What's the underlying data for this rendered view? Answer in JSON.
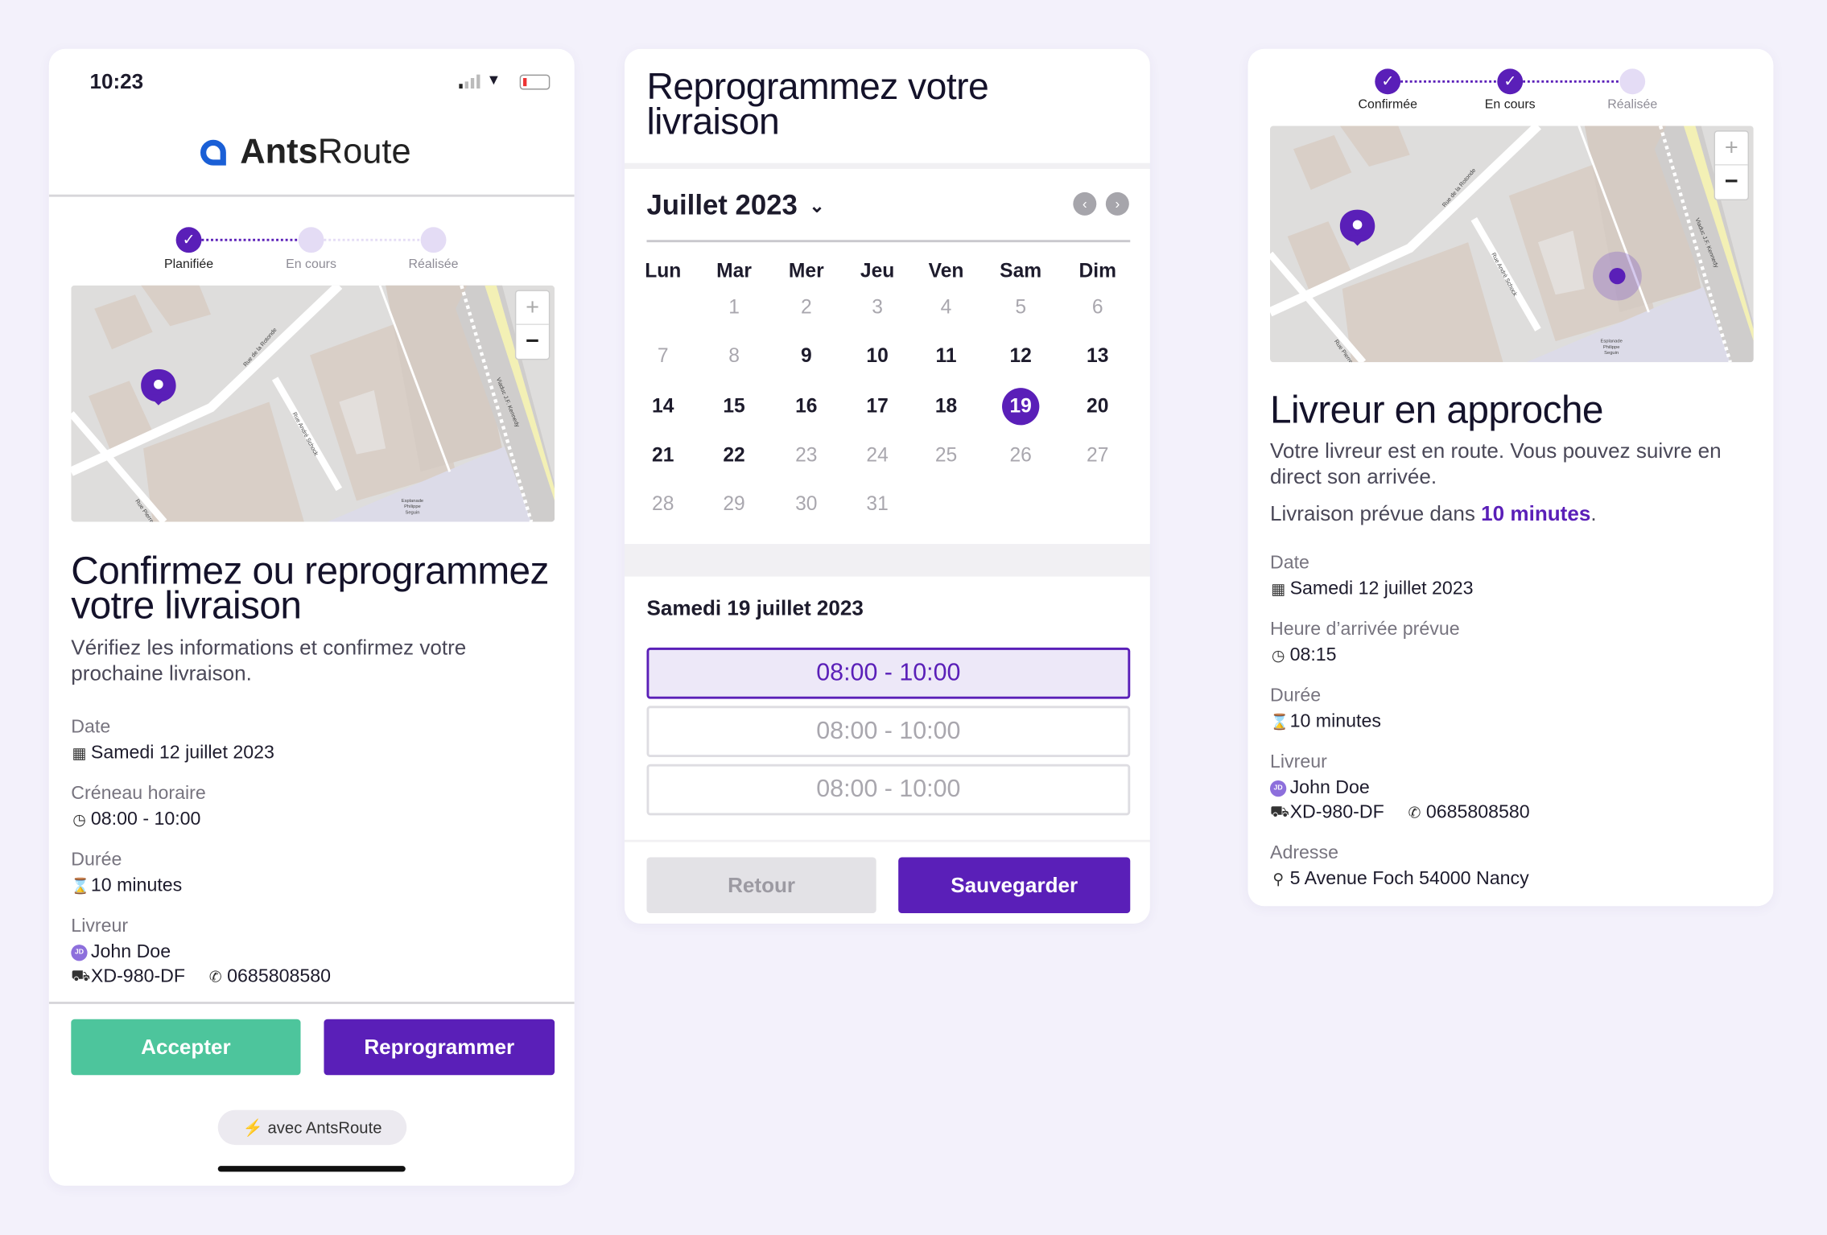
{
  "colors": {
    "primary": "#5a1fb8",
    "accept": "#4dc59c",
    "background": "#f3f1fb",
    "step_inactive": "#e4dcf5"
  },
  "map": {
    "labels": [
      "Rue de la Rotonde",
      "Rue André Schock",
      "Viaduc J.F. Kennedy",
      "Rue Pierre",
      "Esplanade",
      "Philippe",
      "Seguin"
    ],
    "zoom_in": "+",
    "zoom_out": "−"
  },
  "screen1": {
    "status": {
      "time": "10:23",
      "icons": [
        "signal-icon",
        "wifi-icon",
        "battery-low-icon"
      ]
    },
    "logo": {
      "bold": "Ants",
      "light": "Route"
    },
    "steps": [
      {
        "label": "Planifiée",
        "done": true
      },
      {
        "label": "En cours",
        "done": false
      },
      {
        "label": "Réalisée",
        "done": false
      }
    ],
    "title": "Confirmez ou reprogrammez votre livraison",
    "subtitle": "Vérifiez les informations et confirmez votre prochaine livraison.",
    "fields": {
      "date_label": "Date",
      "date_value": "Samedi 12 juillet 2023",
      "slot_label": "Créneau horaire",
      "slot_value": "08:00 - 10:00",
      "duration_label": "Durée",
      "duration_value": "10 minutes",
      "driver_label": "Livreur",
      "driver_initials": "JD",
      "driver_name": "John Doe",
      "plate": "XD-980-DF",
      "phone": "0685808580"
    },
    "accept": "Accepter",
    "reschedule": "Reprogrammer",
    "powered": "avec AntsRoute"
  },
  "screen2": {
    "title": "Reprogrammez votre livraison",
    "month": "Juillet 2023",
    "weekdays": [
      "Lun",
      "Mar",
      "Mer",
      "Jeu",
      "Ven",
      "Sam",
      "Dim"
    ],
    "weeks": [
      [
        null,
        {
          "d": "1",
          "s": "dim"
        },
        {
          "d": "2",
          "s": "dim"
        },
        {
          "d": "3",
          "s": "dim"
        },
        {
          "d": "4",
          "s": "dim"
        },
        {
          "d": "5",
          "s": "dim"
        },
        {
          "d": "6",
          "s": "dim"
        }
      ],
      [
        {
          "d": "7",
          "s": "dim"
        },
        {
          "d": "8",
          "s": "dim"
        },
        {
          "d": "9",
          "s": "on"
        },
        {
          "d": "10",
          "s": "on"
        },
        {
          "d": "11",
          "s": "on"
        },
        {
          "d": "12",
          "s": "on"
        },
        {
          "d": "13",
          "s": "on"
        }
      ],
      [
        {
          "d": "14",
          "s": "on"
        },
        {
          "d": "15",
          "s": "on"
        },
        {
          "d": "16",
          "s": "on"
        },
        {
          "d": "17",
          "s": "on"
        },
        {
          "d": "18",
          "s": "on"
        },
        {
          "d": "19",
          "s": "sel"
        },
        {
          "d": "20",
          "s": "on"
        }
      ],
      [
        {
          "d": "21",
          "s": "on"
        },
        {
          "d": "22",
          "s": "on"
        },
        {
          "d": "23",
          "s": "dim"
        },
        {
          "d": "24",
          "s": "dim"
        },
        {
          "d": "25",
          "s": "dim"
        },
        {
          "d": "26",
          "s": "dim"
        },
        {
          "d": "27",
          "s": "dim"
        }
      ],
      [
        {
          "d": "28",
          "s": "dim"
        },
        {
          "d": "29",
          "s": "dim"
        },
        {
          "d": "30",
          "s": "dim"
        },
        {
          "d": "31",
          "s": "dim"
        },
        null,
        null,
        null
      ]
    ],
    "selected_date": "Samedi 19 juillet 2023",
    "slots": [
      {
        "label": "08:00 - 10:00",
        "selected": true
      },
      {
        "label": "08:00 - 10:00",
        "selected": false
      },
      {
        "label": "08:00 - 10:00",
        "selected": false
      }
    ],
    "back": "Retour",
    "save": "Sauvegarder"
  },
  "screen3": {
    "steps": [
      {
        "label": "Confirmée",
        "done": true
      },
      {
        "label": "En cours",
        "done": true
      },
      {
        "label": "Réalisée",
        "done": false
      }
    ],
    "title": "Livreur en approche",
    "subtitle": "Votre livreur est en route. Vous pouvez suivre en direct son arrivée.",
    "eta_prefix": "Livraison prévue dans ",
    "eta_value": "10 minutes",
    "eta_suffix": ".",
    "fields": {
      "date_label": "Date",
      "date_value": "Samedi 12 juillet 2023",
      "arrival_label": "Heure d’arrivée prévue",
      "arrival_value": "08:15",
      "duration_label": "Durée",
      "duration_value": "10 minutes",
      "driver_label": "Livreur",
      "driver_initials": "JD",
      "driver_name": "John Doe",
      "plate": "XD-980-DF",
      "phone": "0685808580",
      "address_label": "Adresse",
      "address_value": "5 Avenue Foch 54000 Nancy"
    }
  }
}
